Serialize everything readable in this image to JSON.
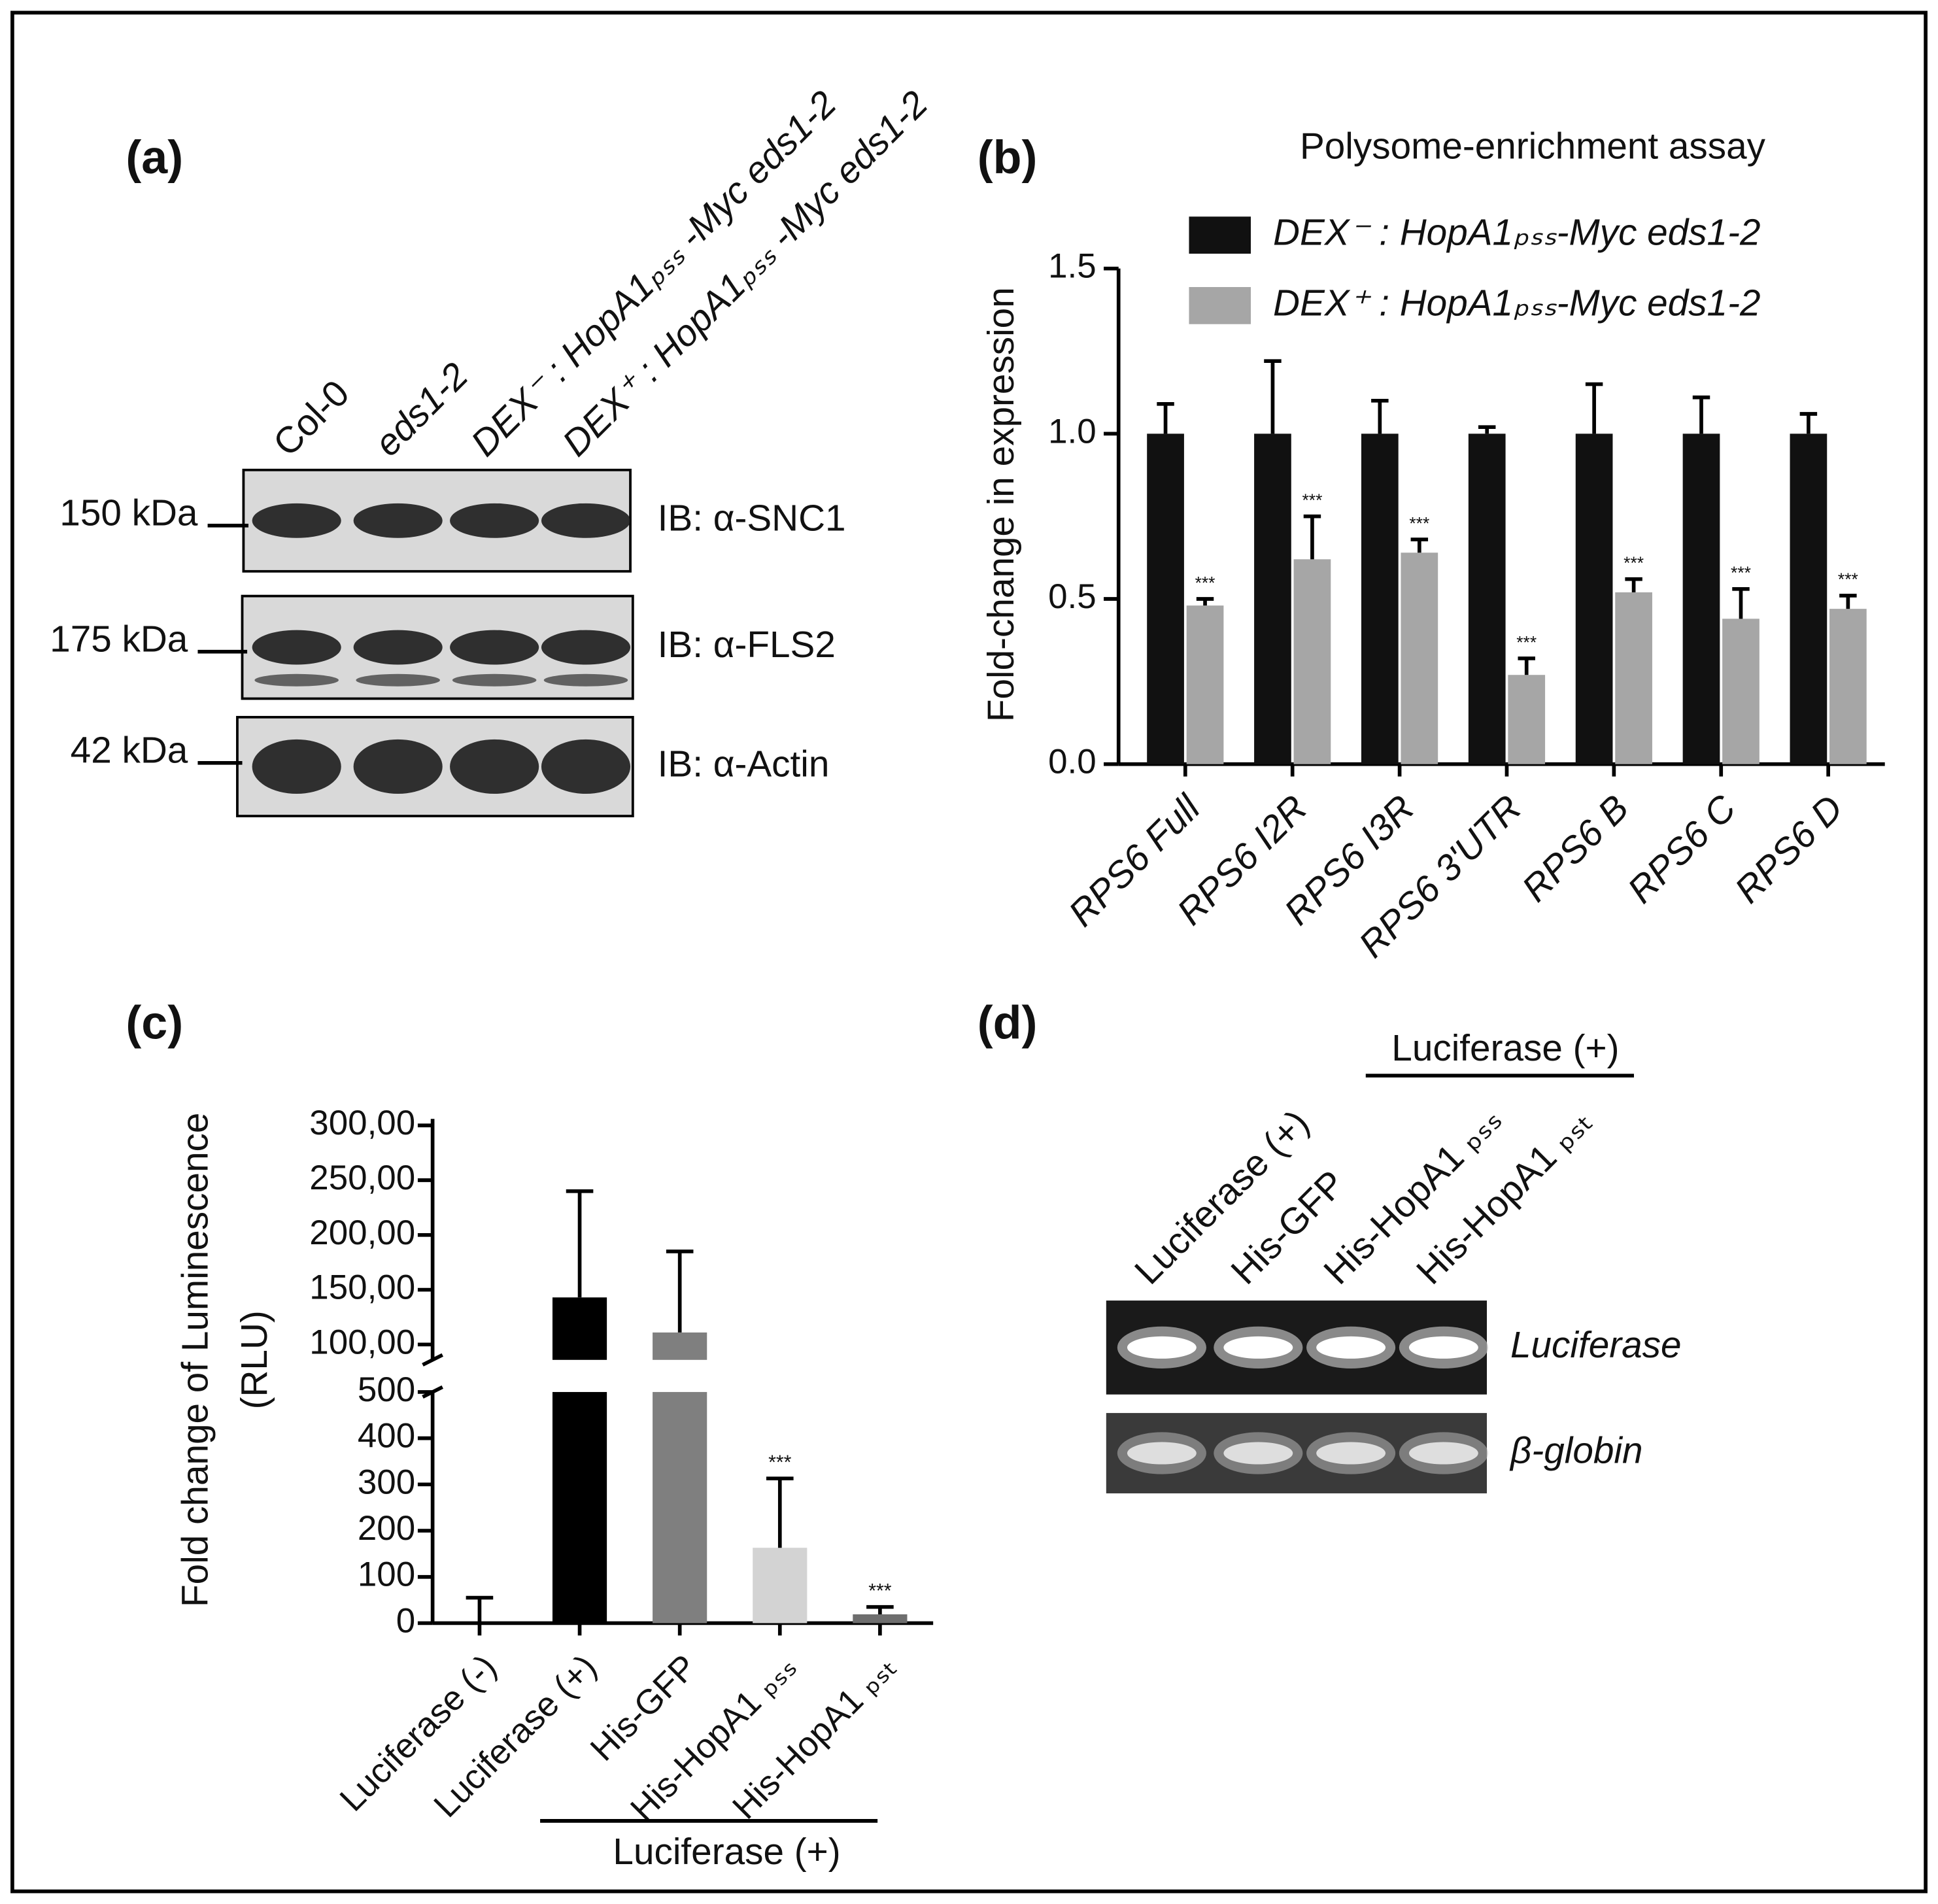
{
  "panel_labels": [
    "(a)",
    "(b)",
    "(c)",
    "(d)"
  ],
  "blot": {
    "lanes": [
      "Col-0",
      "eds1-2",
      "DEX⁻ : HopA1ₚₛₛ -Myc eds1-2",
      "DEX⁺ : HopA1ₚₛₛ -Myc eds1-2"
    ],
    "rows": [
      {
        "marker": "150 kDa",
        "antibody": "IB: α-SNC1"
      },
      {
        "marker": "175 kDa",
        "antibody": "IB: α-FLS2"
      },
      {
        "marker": "42 kDa",
        "antibody": "IB: α-Actin"
      }
    ]
  },
  "gel": {
    "header": "Luciferase (+)",
    "lanes": [
      "Luciferase (+)",
      "His-GFP",
      "His-HopA1 ₚₛₛ",
      "His-HopA1 ₚₛₜ"
    ],
    "rows": [
      "Luciferase",
      "β-globin"
    ]
  },
  "chart_data": [
    {
      "type": "bar",
      "title": "Polysome-enrichment assay",
      "y_label": "Fold-change in expression",
      "categories": [
        "RPS6 Full",
        "RPS6 I2R",
        "RPS6 I3R",
        "RPS6 3'UTR",
        "RPS6 B",
        "RPS6 C",
        "RPS6 D"
      ],
      "series": [
        {
          "name": "DEX⁻ : HopA1ₚₛₛ-Myc eds1-2",
          "color": "#111111",
          "values": [
            1,
            1,
            1,
            1,
            1,
            1,
            1
          ],
          "errors": [
            0.09,
            0.22,
            0.1,
            0.02,
            0.15,
            0.11,
            0.06
          ]
        },
        {
          "name": "DEX⁺ : HopA1ₚₛₛ-Myc eds1-2",
          "color": "#a6a6a6",
          "values": [
            0.48,
            0.62,
            0.64,
            0.27,
            0.52,
            0.44,
            0.47
          ],
          "errors": [
            0.02,
            0.13,
            0.04,
            0.05,
            0.04,
            0.09,
            0.04
          ],
          "significance": [
            "***",
            "***",
            "***",
            "***",
            "***",
            "***",
            "***"
          ]
        }
      ],
      "ylim": [
        0,
        1.5
      ],
      "yticks": [
        {
          "value": 0,
          "label": "0.0"
        },
        0.5,
        {
          "value": 1,
          "label": "1.0"
        },
        1.5
      ]
    },
    {
      "type": "broken_bar",
      "y_label": [
        "Fold change of Luminescence",
        "(RLU)"
      ],
      "categories": [
        "Luciferase (-)",
        "Luciferase (+)",
        "His-GFP",
        "His-HopA1 ₚₛₛ",
        "His-HopA1 ₚₛₜ"
      ],
      "colors": [
        "#ffffff",
        "#000000",
        "#7f7f7f",
        "#d3d3d3",
        "#6e6e6e"
      ],
      "series": [
        {
          "axis": "y2",
          "values": [
            null,
            143,
            111,
            null,
            null
          ],
          "errors": [
            null,
            97,
            74,
            null,
            null
          ]
        },
        {
          "values": [
            0,
            null,
            null,
            163,
            19
          ],
          "errors": [
            55,
            null,
            null,
            150,
            16
          ],
          "significance": [
            null,
            null,
            null,
            "***",
            "***"
          ]
        }
      ],
      "ylim": [
        0,
        500
      ],
      "yticks": [
        0,
        100,
        200,
        300,
        400,
        500
      ],
      "y2lim": [
        86,
        306
      ],
      "y2ticks": [
        {
          "value": 100,
          "label": "100,00"
        },
        {
          "value": 150,
          "label": "150,00"
        },
        {
          "value": 200,
          "label": "200,00"
        },
        {
          "value": 250,
          "label": "250,00"
        },
        {
          "value": 300,
          "label": "300,00"
        }
      ],
      "group_label": "Luciferase (+)"
    }
  ]
}
